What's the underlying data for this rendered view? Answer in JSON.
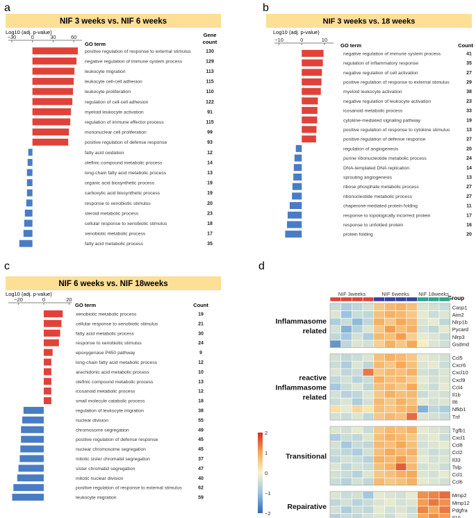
{
  "colors": {
    "up": "#e0423a",
    "down": "#4a7cc4",
    "banner": "#fddf95",
    "grid_line": "#555555"
  },
  "chart_data": [
    {
      "type": "bar",
      "panel": "a",
      "title": "NIF 3 weeks vs. NIF 6 weeks",
      "xlabel": "Log10 (adj. p-value)",
      "ticks": [
        -30,
        0,
        30,
        60
      ],
      "xlim": [
        -35,
        72
      ],
      "term_header": "GO term",
      "count_header": [
        "Gene",
        "count"
      ],
      "terms": [
        "positive regulation of response to external stimulus",
        "negative regulation of immune system process",
        "leukocyte migration",
        "leukocyte cell-cell adhesion",
        "leukocyte proliferation",
        "regulation of cell-cell adhesion",
        "myeloid leukocyte activation",
        "regulation of immune effector process",
        "mononuclear cell proliferation",
        "positive regulation of defense response",
        "fatty acid oxidation",
        "olefinic compound metabolic process",
        "long-chain fatty acid metabolic process",
        "organic acid biosynthetic process",
        "carboxylic acid biosynthetic process",
        "response to xenobiotic stimulus",
        "steroid metabolic process",
        "cellular response to xenobiotic stimulus",
        "xenobiotic metabolic process",
        "fatty acid metabolic process"
      ],
      "values": [
        66,
        64,
        61,
        60,
        59,
        58,
        56,
        55,
        53,
        52,
        -6,
        -7,
        -8,
        -8,
        -8,
        -9,
        -11,
        -12,
        -13,
        -19
      ],
      "counts": [
        "130",
        "129",
        "113",
        "115",
        "110",
        "122",
        "91",
        "115",
        "99",
        "93",
        "12",
        "14",
        "13",
        "19",
        "19",
        "20",
        "23",
        "18",
        "17",
        "35"
      ]
    },
    {
      "type": "bar",
      "panel": "b",
      "title": "NIF 3 weeks vs. 18 weeks",
      "xlabel": "Log10 (adj. p-value)",
      "ticks": [
        -10,
        0,
        10
      ],
      "xlim": [
        -12,
        14
      ],
      "term_header": "GO term",
      "count_header": [
        "Count"
      ],
      "terms": [
        "negative regulation of immune system process",
        "regulation of inflammatory response",
        "negative regulation of cell activation",
        "positive regulation of response to external stimulus",
        "myeloid leukocyte activation",
        "negative regulation of leukocyte activation",
        "icosanoid metabolic process",
        "cytokine-mediated signaling pathway",
        "positive regulation of response to cytokine stimulus",
        "positive regulation of defense response",
        "regulation of angiogenesis",
        "purine ribonucleotide metabolic process",
        "DNA-templated DNA replication",
        "sprouting angiogenesis",
        "ribose phosphate metabolic process",
        "ribonucleotide metabolic process",
        "chaperone-mediated protein folding",
        "response to topologically incorrect protein",
        "response to unfolded protein",
        "protein folding"
      ],
      "values": [
        9.6,
        9.3,
        8.9,
        8.7,
        8.4,
        7.1,
        6.9,
        6.8,
        6.5,
        6.3,
        -2.6,
        -3.2,
        -3.5,
        -3.7,
        -4.1,
        -4.3,
        -5.3,
        -6.2,
        -6.5,
        -7.3
      ],
      "counts": [
        "41",
        "35",
        "27",
        "29",
        "38",
        "23",
        "33",
        "19",
        "13",
        "27",
        "20",
        "24",
        "14",
        "13",
        "27",
        "27",
        "11",
        "17",
        "16",
        "20"
      ]
    },
    {
      "type": "bar",
      "panel": "c",
      "title": "NIF 6 weeks vs. NIF 18weeks",
      "xlabel": "Log10 (adj. p-value)",
      "ticks": [
        -20,
        0,
        20
      ],
      "xlim": [
        -28,
        22
      ],
      "term_header": "GO term",
      "count_header": [
        "Count"
      ],
      "terms": [
        "xenobiotic metabolic process",
        "cellular response to xenobiotic stimulus",
        "fatty acid metabolic process",
        "response to xenobiotic stimulus",
        "epoxygenase P450 pathway",
        "long-chain fatty acid metabolic process",
        "arachidonic acid metabolic process",
        "olefinic compound metabolic process",
        "icosanoid metabolic process",
        "small molecule catabolic process",
        "regulation of leukocyte migration",
        "nuclear division",
        "chromosome segregation",
        "positive regulation of defense response",
        "nuclear chromosome segregation",
        "mitotic sister chromatid segregation",
        "sister chromatid segregation",
        "mitotic nuclear division",
        "positive regulation of response to external stimulus",
        "leukocyte migration"
      ],
      "values": [
        15,
        14,
        13,
        12,
        7,
        6,
        6,
        6,
        6,
        6,
        -16,
        -17,
        -18,
        -18,
        -18.5,
        -19,
        -20,
        -21,
        -24,
        -25
      ],
      "counts": [
        "19",
        "21",
        "30",
        "24",
        "9",
        "12",
        "10",
        "13",
        "12",
        "18",
        "38",
        "55",
        "49",
        "45",
        "45",
        "37",
        "47",
        "40",
        "62",
        "59"
      ]
    },
    {
      "type": "heatmap",
      "panel": "d",
      "col_groups": [
        "NIF 3weeks",
        "NIF 6weeks",
        "NIF 18weeks"
      ],
      "group_header": "Group",
      "group_colors": [
        "#e0423a",
        "#3a3f9e",
        "#2aa58a"
      ],
      "colorbar_ticks": [
        "2",
        "1",
        "0",
        "−1",
        "−2"
      ],
      "blocks": [
        {
          "label": [
            "Inflammasome",
            "related"
          ],
          "genes": [
            "Casp1",
            "Aim2",
            "Nlrp1b",
            "Pycard",
            "Nlrp3",
            "Gsdmd"
          ],
          "values": [
            [
              -0.5,
              -0.8,
              -0.6,
              -0.4,
              0.6,
              0.8,
              0.9,
              0.7,
              -0.3,
              -0.4,
              -0.5
            ],
            [
              -0.3,
              -1.0,
              -0.5,
              -0.6,
              0.7,
              0.9,
              0.8,
              0.6,
              -0.2,
              -0.5,
              -0.3
            ],
            [
              -0.8,
              -0.5,
              -1.1,
              -0.6,
              0.9,
              0.6,
              1.0,
              0.8,
              -0.3,
              -0.2,
              -0.6
            ],
            [
              -0.4,
              -1.2,
              -0.7,
              -0.3,
              0.6,
              1.1,
              0.7,
              0.9,
              -0.4,
              -0.6,
              -0.2
            ],
            [
              -0.6,
              -0.9,
              -0.4,
              -0.8,
              0.8,
              0.7,
              1.1,
              0.5,
              -0.2,
              -0.3,
              -0.5
            ],
            [
              -1.5,
              -0.6,
              -0.3,
              -0.4,
              0.5,
              0.9,
              0.6,
              1.0,
              0.1,
              -0.3,
              -0.4
            ]
          ]
        },
        {
          "label": [
            "reactive",
            "Inflammasome",
            "related"
          ],
          "genes": [
            "Ccl5",
            "Cxcr6",
            "Cxcl10",
            "Cxcl9",
            "Ccl4",
            "Il1b",
            "Il6",
            "Nfkb1",
            "Tnf"
          ],
          "values": [
            [
              -0.4,
              -0.6,
              -0.5,
              -0.3,
              0.7,
              0.9,
              0.8,
              0.6,
              -0.2,
              -0.3,
              -0.4
            ],
            [
              -0.5,
              -0.8,
              -0.3,
              -0.6,
              0.8,
              0.6,
              1.0,
              0.7,
              -0.3,
              -0.2,
              -0.5
            ],
            [
              -0.3,
              -0.6,
              -0.5,
              1.4,
              0.6,
              0.8,
              0.7,
              0.9,
              -0.4,
              -0.5,
              -0.3
            ],
            [
              -0.6,
              -0.4,
              -0.7,
              -0.5,
              0.9,
              0.7,
              0.8,
              0.6,
              -0.2,
              -0.4,
              -0.3
            ],
            [
              -0.9,
              -0.5,
              -0.3,
              -0.6,
              0.7,
              0.8,
              0.6,
              1.0,
              -0.3,
              -0.5,
              -0.2
            ],
            [
              -0.4,
              -0.7,
              -0.6,
              -0.3,
              0.6,
              0.9,
              0.7,
              0.8,
              -0.5,
              -0.3,
              -0.4
            ],
            [
              -0.5,
              -0.3,
              -0.8,
              -0.4,
              0.8,
              0.6,
              0.9,
              0.7,
              -0.2,
              -0.4,
              -0.3
            ],
            [
              0.3,
              -0.2,
              0.4,
              0.2,
              0.7,
              0.6,
              0.8,
              0.9,
              -1.2,
              -0.6,
              -0.8
            ],
            [
              -0.4,
              -0.5,
              -0.3,
              -0.6,
              0.6,
              0.8,
              0.7,
              1.5,
              -0.3,
              -0.4,
              -0.5
            ]
          ]
        },
        {
          "label": [
            "Transitional"
          ],
          "genes": [
            "Tgfb1",
            "Cxcl1",
            "Ccl8",
            "Ccl2",
            "Il33",
            "Tslp",
            "Ccl1",
            "Ccl6"
          ],
          "values": [
            [
              -0.3,
              -0.4,
              -0.2,
              -0.5,
              0.6,
              0.8,
              0.7,
              0.9,
              -0.2,
              -0.3,
              -0.4
            ],
            [
              -0.8,
              -0.5,
              -0.6,
              -0.3,
              0.7,
              0.9,
              0.8,
              0.6,
              -0.3,
              -0.2,
              -0.5
            ],
            [
              -0.4,
              -0.9,
              -0.5,
              -0.6,
              0.8,
              0.7,
              1.0,
              0.7,
              -0.4,
              -0.3,
              -0.2
            ],
            [
              -0.5,
              -0.6,
              -0.8,
              -0.4,
              0.7,
              1.0,
              0.8,
              0.9,
              -0.3,
              -0.5,
              -0.4
            ],
            [
              -0.6,
              -0.4,
              -0.5,
              -0.7,
              0.9,
              0.8,
              1.1,
              0.7,
              -0.2,
              -0.4,
              -0.3
            ],
            [
              -0.3,
              -0.6,
              -0.4,
              -0.5,
              0.7,
              0.9,
              1.6,
              0.8,
              -0.4,
              -0.3,
              -0.5
            ],
            [
              -0.4,
              -0.5,
              -0.7,
              -0.3,
              0.6,
              0.7,
              0.9,
              1.0,
              -0.3,
              -0.4,
              -0.2
            ],
            [
              -0.5,
              -0.7,
              -0.4,
              -0.6,
              0.8,
              0.6,
              0.7,
              0.9,
              -0.2,
              -0.3,
              -0.4
            ]
          ]
        },
        {
          "label": [
            "Repairative"
          ],
          "genes": [
            "Mmp2",
            "Mmp12",
            "Pdgfra",
            "Il10"
          ],
          "values": [
            [
              -0.3,
              -0.5,
              -0.4,
              -0.9,
              -0.2,
              -0.3,
              -0.4,
              -0.2,
              1.2,
              1.3,
              1.5
            ],
            [
              -0.6,
              -0.4,
              -0.7,
              -0.5,
              -0.3,
              -0.2,
              -0.4,
              -0.3,
              1.1,
              1.4,
              1.2
            ],
            [
              -0.4,
              -0.8,
              -0.5,
              -0.6,
              -0.2,
              -0.4,
              -0.3,
              -0.5,
              1.3,
              1.0,
              1.4
            ],
            [
              -0.7,
              -0.5,
              -0.6,
              -0.4,
              -0.3,
              -0.5,
              -0.2,
              -0.4,
              1.0,
              1.2,
              1.1
            ]
          ]
        }
      ]
    }
  ]
}
